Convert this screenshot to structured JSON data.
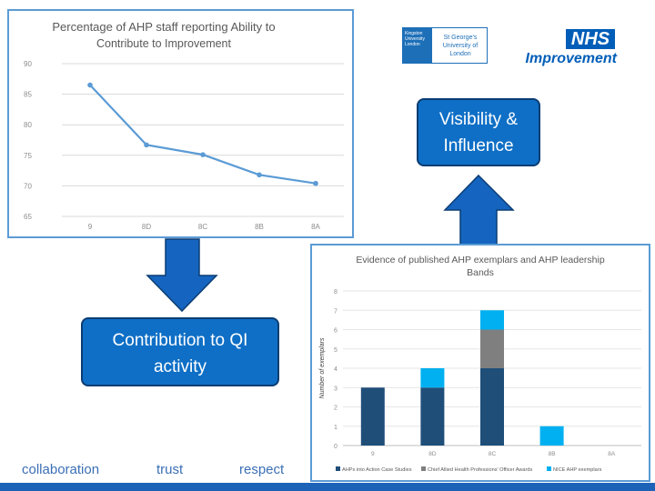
{
  "chart_data": [
    {
      "type": "line",
      "title": "Percentage of AHP staff reporting  Ability to Contribute to Improvement",
      "title_lines": [
        "Percentage of AHP staff reporting  Ability to",
        "Contribute to Improvement"
      ],
      "categories": [
        "9",
        "8D",
        "8C",
        "8B",
        "8A"
      ],
      "values": [
        86.5,
        76.7,
        75.1,
        71.8,
        70.4
      ],
      "ylim": [
        65,
        90
      ],
      "yticks": [
        "90",
        "85",
        "80",
        "75",
        "70",
        "65"
      ],
      "line_color": "#5b9bd5",
      "grid": true
    },
    {
      "type": "bar",
      "stacked": true,
      "title": "Evidence of published AHP exemplars and AHP leadership Bands",
      "title_lines": [
        "Evidence of published AHP exemplars and AHP leadership",
        "Bands"
      ],
      "ylabel": "Number of exemplars",
      "categories": [
        "9",
        "8D",
        "8C",
        "8B",
        "8A"
      ],
      "ylim": [
        0,
        8
      ],
      "yticks": [
        "8",
        "7",
        "6",
        "5",
        "4",
        "3",
        "2",
        "1",
        "0"
      ],
      "series": [
        {
          "name": "AHPs into Action Case Studies",
          "values": [
            3,
            3,
            4,
            0,
            0
          ],
          "color": "#1f4e79"
        },
        {
          "name": "Chief Allied Health Professions' Officer Awards",
          "values": [
            0,
            0,
            2,
            0,
            0
          ],
          "color": "#7f7f7f"
        },
        {
          "name": "NICE AHP exemplars",
          "values": [
            0,
            1,
            1,
            1,
            0
          ],
          "color": "#00b0f0"
        }
      ],
      "legend_position": "bottom"
    }
  ],
  "logos": {
    "kingston": "Kingston University London",
    "stgeorges": "St George's University of London",
    "nhs": "NHS",
    "improvement": "Improvement"
  },
  "callouts": {
    "visibility": [
      "Visibility &",
      "Influence"
    ],
    "contribution": [
      "Contribution to QI",
      "activity"
    ]
  },
  "footer": {
    "collaboration": "collaboration",
    "trust": "trust",
    "respect": "respect"
  },
  "colors": {
    "arrow_fill": "#1565c0",
    "arrow_stroke": "#0b3d73",
    "callout_fill": "#0f6fc6",
    "bottom_bar": "#1c63b7"
  }
}
